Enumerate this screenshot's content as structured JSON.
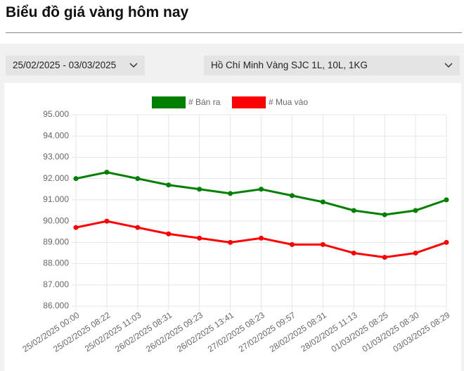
{
  "header": {
    "title": "Biểu đồ giá vàng hôm nay"
  },
  "filters": {
    "date_range": "25/02/2025 - 03/03/2025",
    "product": "Hồ Chí Minh Vàng SJC 1L, 10L, 1KG"
  },
  "chart_data": {
    "type": "line",
    "categories": [
      "25/02/2025 00:00",
      "25/02/2025 08:22",
      "25/02/2025 11:03",
      "26/02/2025 08:31",
      "26/02/2025 09:23",
      "26/02/2025 13:41",
      "27/02/2025 08:23",
      "27/02/2025 09:57",
      "28/02/2025 08:31",
      "28/02/2025 11:13",
      "01/03/2025 08:25",
      "01/03/2025 08:30",
      "03/03/2025 08:29"
    ],
    "series": [
      {
        "name": "# Bán ra",
        "color": "#008000",
        "values": [
          92000,
          92300,
          92000,
          91700,
          91500,
          91300,
          91500,
          91200,
          90900,
          90500,
          90300,
          90500,
          91000
        ]
      },
      {
        "name": "# Mua vào",
        "color": "#ff0000",
        "values": [
          89700,
          90000,
          89700,
          89400,
          89200,
          89000,
          89200,
          88900,
          88900,
          88500,
          88300,
          88500,
          89000
        ]
      }
    ],
    "ylim": [
      86000,
      95000
    ],
    "yticks": [
      {
        "value": 86000,
        "label": "86.000"
      },
      {
        "value": 87000,
        "label": "87.000"
      },
      {
        "value": 88000,
        "label": "88.000"
      },
      {
        "value": 89000,
        "label": "89.000"
      },
      {
        "value": 90000,
        "label": "90.000"
      },
      {
        "value": 91000,
        "label": "91.000"
      },
      {
        "value": 92000,
        "label": "92.000"
      },
      {
        "value": 93000,
        "label": "93.000"
      },
      {
        "value": 94000,
        "label": "94.000"
      },
      {
        "value": 95000,
        "label": "95.000"
      }
    ],
    "grid": true,
    "legend": "top"
  }
}
